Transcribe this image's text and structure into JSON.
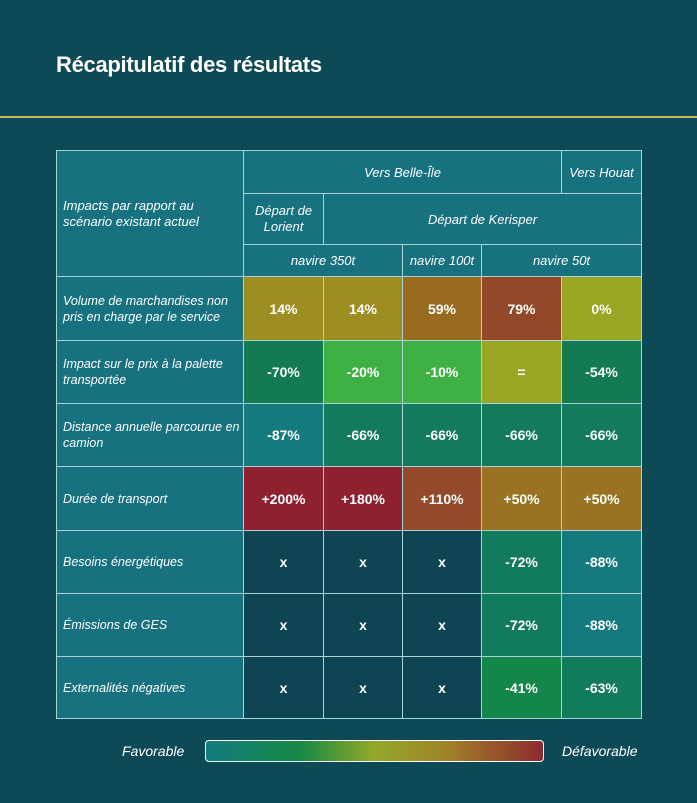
{
  "title": "Récapitulatif des résultats",
  "table": {
    "corner_label": "Impacts par rapport au scénario existant actuel",
    "group_headers": [
      "Vers Belle-Île",
      "Vers Houat"
    ],
    "depart_headers": [
      "Départ de Lorient",
      "Départ de Kerisper"
    ],
    "ship_headers": [
      "navire 350t",
      "navire 100t",
      "navire 50t"
    ],
    "rows": [
      {
        "label": "Volume de marchandises non pris en charge par le service",
        "values": [
          "14%",
          "14%",
          "59%",
          "79%",
          "0%"
        ],
        "colors": [
          "#9d8e22",
          "#9d8e22",
          "#986b20",
          "#93482a",
          "#9aa524"
        ]
      },
      {
        "label": "Impact sur le prix à la palette transportée",
        "values": [
          "-70%",
          "-20%",
          "-10%",
          "=",
          "-54%"
        ],
        "colors": [
          "#137a52",
          "#3fb044",
          "#3fb044",
          "#9aa524",
          "#137a52"
        ]
      },
      {
        "label": "Distance annuelle parcourue en camion",
        "values": [
          "-87%",
          "-66%",
          "-66%",
          "-66%",
          "-66%"
        ],
        "colors": [
          "#147a7e",
          "#137a5e",
          "#137a5e",
          "#137a5e",
          "#137a5e"
        ]
      },
      {
        "label": "Durée de transport",
        "values": [
          "+200%",
          "+180%",
          "+110%",
          "+50%",
          "+50%"
        ],
        "colors": [
          "#8e2030",
          "#8e2030",
          "#944a2b",
          "#9a7322",
          "#9a7322"
        ]
      },
      {
        "label": "Besoins énergétiques",
        "values": [
          "x",
          "x",
          "x",
          "-72%",
          "-88%"
        ],
        "colors": [
          "#0f4552",
          "#0f4552",
          "#0f4552",
          "#127b5c",
          "#147a7e"
        ]
      },
      {
        "label": "Émissions de GES",
        "values": [
          "x",
          "x",
          "x",
          "-72%",
          "-88%"
        ],
        "colors": [
          "#0f4552",
          "#0f4552",
          "#0f4552",
          "#127b5c",
          "#147a7e"
        ]
      },
      {
        "label": "Externalités négatives",
        "values": [
          "x",
          "x",
          "x",
          "-41%",
          "-63%"
        ],
        "colors": [
          "#0f4552",
          "#0f4552",
          "#0f4552",
          "#13864a",
          "#127b5c"
        ]
      }
    ]
  },
  "legend": {
    "favorable": "Favorable",
    "defavorable": "Défavorable"
  }
}
